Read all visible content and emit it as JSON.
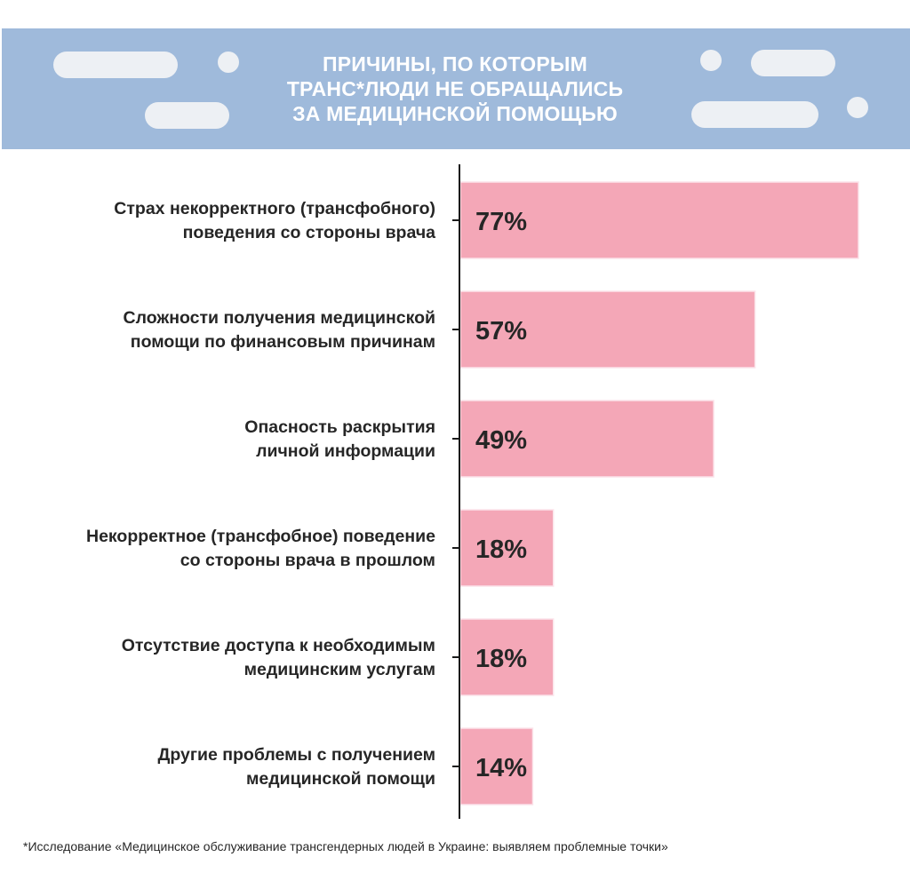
{
  "header": {
    "title": "ПРИЧИНЫ, ПО КОТОРЫМ\nТРАНС*ЛЮДИ НЕ ОБРАЩАЛИСЬ\nЗА МЕДИЦИНСКОЙ ПОМОЩЬЮ",
    "background_color": "#9fbadb",
    "decoration_color": "#edf0f4"
  },
  "chart_data": {
    "type": "bar",
    "orientation": "horizontal",
    "title": "ПРИЧИНЫ, ПО КОТОРЫМ ТРАНС*ЛЮДИ НЕ ОБРАЩАЛИСЬ ЗА МЕДИЦИНСКОЙ ПОМОЩЬЮ",
    "categories": [
      [
        "Страх некорректного (трансфобного)",
        "поведения со стороны врача"
      ],
      [
        "Сложности получения медицинской",
        "помощи по финансовым причинам"
      ],
      [
        "Опасность раскрытия",
        "личной информации"
      ],
      [
        "Некорректное (трансфобное) поведение",
        "со стороны врача в прошлом"
      ],
      [
        "Отсутствие доступа к необходимым",
        "медицинским услугам"
      ],
      [
        "Другие проблемы с получением",
        "медицинской помощи"
      ]
    ],
    "values": [
      77,
      57,
      49,
      18,
      18,
      14
    ],
    "value_labels": [
      "77%",
      "57%",
      "49%",
      "18%",
      "18%",
      "14%"
    ],
    "bar_color": "#f4a7b7",
    "axis_color": "#1a1a1a",
    "xlim": [
      0,
      100
    ],
    "grid": false
  },
  "footnote": "*Исследование «Медицинское обслуживание трансгендерных людей в Украине: выявляем проблемные точки»"
}
